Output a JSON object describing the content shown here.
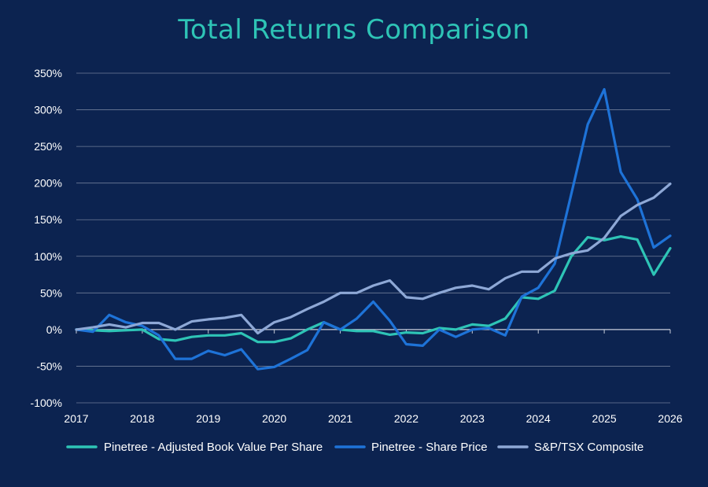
{
  "colors": {
    "background": "#0c2350",
    "grid": "#6f7d98",
    "axis": "#c8ceda",
    "text": "#ffffff",
    "title": "#2ec4b6"
  },
  "chart_data": {
    "type": "line",
    "title": "Total Returns Comparison",
    "xlabel": "",
    "ylabel": "",
    "xlim": [
      2017,
      2026
    ],
    "ylim": [
      -100,
      350
    ],
    "yticks": [
      -100,
      -50,
      0,
      50,
      100,
      150,
      200,
      250,
      300,
      350
    ],
    "ytick_labels": [
      "-100%",
      "-50%",
      "0%",
      "50%",
      "100%",
      "150%",
      "200%",
      "250%",
      "300%",
      "350%"
    ],
    "xticks": [
      2017,
      2018,
      2019,
      2020,
      2021,
      2022,
      2023,
      2024,
      2025,
      2026
    ],
    "xtick_labels": [
      "2017",
      "2018",
      "2019",
      "2020",
      "2021",
      "2022",
      "2023",
      "2024",
      "2025",
      "2026"
    ],
    "grid": "horizontal",
    "legend": "bottom",
    "series": [
      {
        "name": "Pinetree - Adjusted Book Value Per Share",
        "color": "#2ec4b6",
        "x": [
          2017.0,
          2017.25,
          2017.5,
          2017.75,
          2018.0,
          2018.25,
          2018.5,
          2018.75,
          2019.0,
          2019.25,
          2019.5,
          2019.75,
          2020.0,
          2020.25,
          2020.5,
          2020.75,
          2021.0,
          2021.25,
          2021.5,
          2021.75,
          2022.0,
          2022.25,
          2022.5,
          2022.75,
          2023.0,
          2023.25,
          2023.5,
          2023.75,
          2024.0,
          2024.25,
          2024.5,
          2024.75,
          2025.0,
          2025.25,
          2025.5,
          2025.75,
          2026.0
        ],
        "y": [
          0,
          -1,
          -2,
          -1,
          0,
          -13,
          -15,
          -10,
          -8,
          -8,
          -5,
          -17,
          -17,
          -12,
          0,
          10,
          0,
          -2,
          -2,
          -7,
          -4,
          -5,
          2,
          0,
          7,
          5,
          15,
          44,
          42,
          53,
          100,
          126,
          122,
          127,
          123,
          75,
          111
        ]
      },
      {
        "name": "Pinetree - Share Price",
        "color": "#1e73d8",
        "x": [
          2017.0,
          2017.25,
          2017.5,
          2017.75,
          2018.0,
          2018.25,
          2018.5,
          2018.75,
          2019.0,
          2019.25,
          2019.5,
          2019.75,
          2020.0,
          2020.25,
          2020.5,
          2020.75,
          2021.0,
          2021.25,
          2021.5,
          2021.75,
          2022.0,
          2022.25,
          2022.5,
          2022.75,
          2023.0,
          2023.25,
          2023.5,
          2023.75,
          2024.0,
          2024.25,
          2024.5,
          2024.75,
          2025.0,
          2025.25,
          2025.5,
          2025.75,
          2026.0
        ],
        "y": [
          0,
          -3,
          20,
          10,
          5,
          -8,
          -40,
          -40,
          -29,
          -35,
          -27,
          -54,
          -51,
          -40,
          -28,
          10,
          0,
          15,
          38,
          12,
          -20,
          -22,
          0,
          -10,
          0,
          2,
          -8,
          45,
          57,
          90,
          185,
          280,
          328,
          215,
          178,
          112,
          128
        ]
      },
      {
        "name": "S&P/TSX Composite",
        "color": "#8ea8d6",
        "x": [
          2017.0,
          2017.25,
          2017.5,
          2017.75,
          2018.0,
          2018.25,
          2018.5,
          2018.75,
          2019.0,
          2019.25,
          2019.5,
          2019.75,
          2020.0,
          2020.25,
          2020.5,
          2020.75,
          2021.0,
          2021.25,
          2021.5,
          2021.75,
          2022.0,
          2022.25,
          2022.5,
          2022.75,
          2023.0,
          2023.25,
          2023.5,
          2023.75,
          2024.0,
          2024.25,
          2024.5,
          2024.75,
          2025.0,
          2025.25,
          2025.5,
          2025.75,
          2026.0
        ],
        "y": [
          0,
          3,
          7,
          3,
          9,
          9,
          0,
          11,
          14,
          16,
          20,
          -5,
          10,
          17,
          28,
          38,
          50,
          50,
          60,
          67,
          44,
          42,
          50,
          57,
          60,
          55,
          70,
          79,
          79,
          97,
          104,
          108,
          125,
          155,
          170,
          180,
          199
        ]
      }
    ]
  }
}
